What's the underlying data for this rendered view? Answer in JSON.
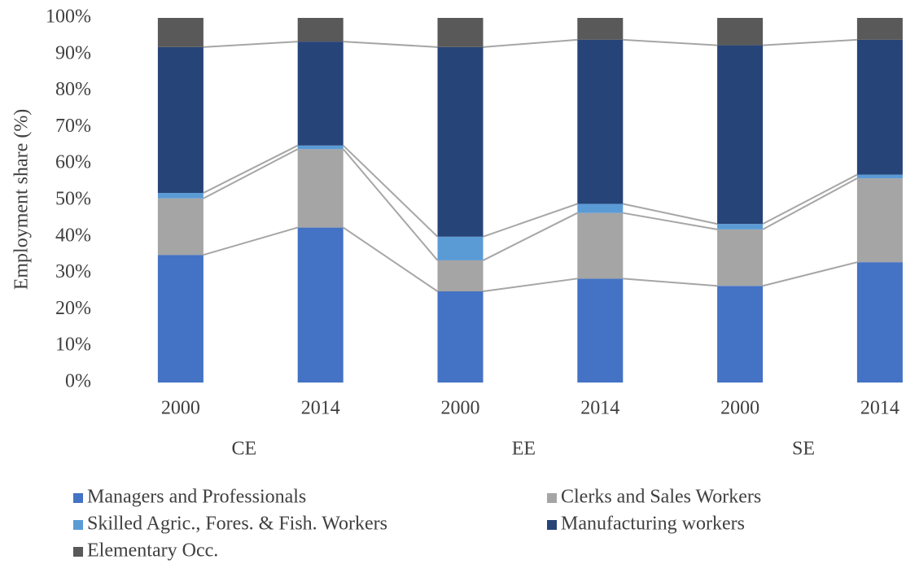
{
  "chart_data": {
    "type": "stacked_bar",
    "ylabel": "Employment share (%)",
    "categories": [
      "2000",
      "2014",
      "2000",
      "2014",
      "2000",
      "2014"
    ],
    "groups": [
      "CE",
      "EE",
      "SE"
    ],
    "series": [
      {
        "name": "Managers and Professionals",
        "color": "#4472c4",
        "values": [
          35,
          42.5,
          25,
          28.5,
          26.5,
          33
        ]
      },
      {
        "name": "Clerks and Sales Workers",
        "color": "#a5a5a5",
        "values": [
          15.5,
          21.5,
          8.5,
          18,
          15.5,
          23
        ]
      },
      {
        "name": "Skilled Agric., Fores. & Fish. Workers",
        "color": "#5b9bd5",
        "values": [
          1.5,
          1,
          6.5,
          2.5,
          1.5,
          1
        ]
      },
      {
        "name": "Manufacturing workers",
        "color": "#264478",
        "values": [
          40,
          28.5,
          52,
          45,
          49,
          37
        ]
      },
      {
        "name": "Elementary Occ.",
        "color": "#595959",
        "values": [
          8,
          6.5,
          8,
          6,
          7.5,
          6
        ]
      }
    ],
    "ylim": [
      0,
      100
    ],
    "yticks": [
      {
        "value": 0,
        "label": "0%"
      },
      {
        "value": 10,
        "label": "10%"
      },
      {
        "value": 20,
        "label": "20%"
      },
      {
        "value": 30,
        "label": "30%"
      },
      {
        "value": 40,
        "label": "40%"
      },
      {
        "value": 50,
        "label": "50%"
      },
      {
        "value": 60,
        "label": "60%"
      },
      {
        "value": 70,
        "label": "70%"
      },
      {
        "value": 80,
        "label": "80%"
      },
      {
        "value": 90,
        "label": "90%"
      },
      {
        "value": 100,
        "label": "100%"
      }
    ],
    "grid": false
  }
}
